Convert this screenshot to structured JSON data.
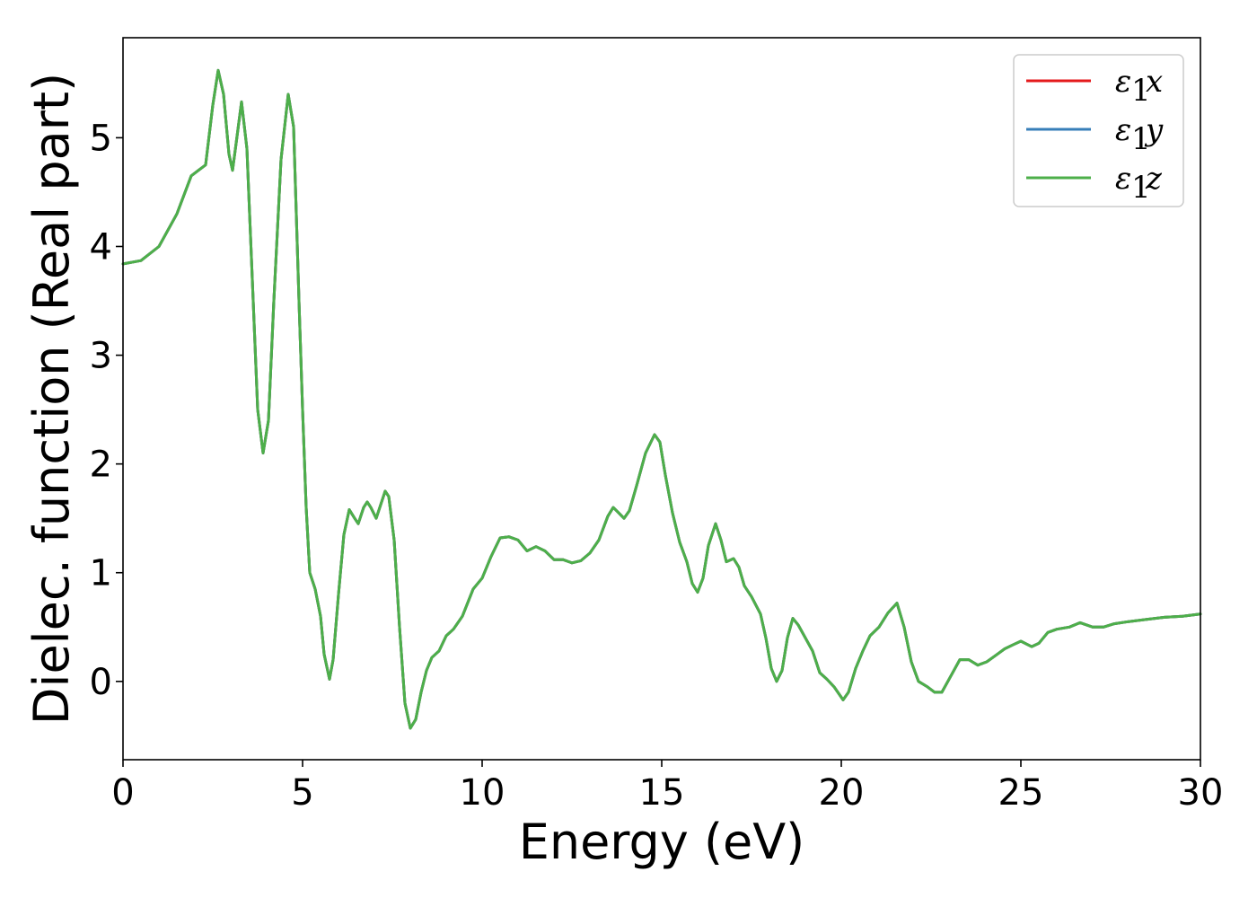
{
  "chart_data": {
    "type": "line",
    "title": "",
    "xlabel": "Energy (eV)",
    "ylabel": "Dielec. function (Real part)",
    "xlim": [
      0,
      30
    ],
    "ylim": [
      -0.72,
      5.92
    ],
    "xticks": [
      0,
      5,
      10,
      15,
      20,
      25,
      30
    ],
    "yticks": [
      0,
      1,
      2,
      3,
      4,
      5
    ],
    "grid": false,
    "legend_position": "top-right",
    "series": [
      {
        "name": "x",
        "color": "#e41a1c"
      },
      {
        "name": "y",
        "color": "#377eb8"
      },
      {
        "name": "z",
        "color": "#4daf4a"
      }
    ],
    "points": [
      [
        0,
        3.84
      ],
      [
        0.5,
        3.87
      ],
      [
        1.0,
        4.0
      ],
      [
        1.5,
        4.3
      ],
      [
        1.9,
        4.65
      ],
      [
        2.1,
        4.7
      ],
      [
        2.3,
        4.75
      ],
      [
        2.5,
        5.3
      ],
      [
        2.65,
        5.62
      ],
      [
        2.8,
        5.4
      ],
      [
        2.95,
        4.85
      ],
      [
        3.05,
        4.7
      ],
      [
        3.15,
        4.95
      ],
      [
        3.3,
        5.33
      ],
      [
        3.45,
        4.9
      ],
      [
        3.6,
        3.7
      ],
      [
        3.75,
        2.5
      ],
      [
        3.9,
        2.1
      ],
      [
        4.05,
        2.4
      ],
      [
        4.2,
        3.5
      ],
      [
        4.4,
        4.8
      ],
      [
        4.6,
        5.4
      ],
      [
        4.75,
        5.1
      ],
      [
        4.9,
        3.5
      ],
      [
        5.0,
        2.5
      ],
      [
        5.1,
        1.6
      ],
      [
        5.2,
        1.0
      ],
      [
        5.35,
        0.85
      ],
      [
        5.5,
        0.6
      ],
      [
        5.6,
        0.25
      ],
      [
        5.75,
        0.02
      ],
      [
        5.85,
        0.2
      ],
      [
        6.0,
        0.8
      ],
      [
        6.15,
        1.35
      ],
      [
        6.3,
        1.58
      ],
      [
        6.45,
        1.5
      ],
      [
        6.55,
        1.45
      ],
      [
        6.7,
        1.6
      ],
      [
        6.8,
        1.65
      ],
      [
        6.9,
        1.6
      ],
      [
        7.05,
        1.5
      ],
      [
        7.2,
        1.65
      ],
      [
        7.3,
        1.75
      ],
      [
        7.4,
        1.7
      ],
      [
        7.55,
        1.3
      ],
      [
        7.7,
        0.5
      ],
      [
        7.85,
        -0.2
      ],
      [
        8.0,
        -0.43
      ],
      [
        8.15,
        -0.35
      ],
      [
        8.3,
        -0.1
      ],
      [
        8.45,
        0.1
      ],
      [
        8.6,
        0.22
      ],
      [
        8.8,
        0.28
      ],
      [
        9.0,
        0.42
      ],
      [
        9.2,
        0.48
      ],
      [
        9.45,
        0.6
      ],
      [
        9.75,
        0.85
      ],
      [
        10.0,
        0.95
      ],
      [
        10.25,
        1.15
      ],
      [
        10.5,
        1.32
      ],
      [
        10.75,
        1.33
      ],
      [
        11.0,
        1.3
      ],
      [
        11.25,
        1.2
      ],
      [
        11.5,
        1.24
      ],
      [
        11.75,
        1.2
      ],
      [
        12.0,
        1.12
      ],
      [
        12.25,
        1.12
      ],
      [
        12.5,
        1.09
      ],
      [
        12.75,
        1.11
      ],
      [
        13.0,
        1.18
      ],
      [
        13.25,
        1.3
      ],
      [
        13.5,
        1.52
      ],
      [
        13.65,
        1.6
      ],
      [
        13.8,
        1.55
      ],
      [
        13.95,
        1.5
      ],
      [
        14.1,
        1.57
      ],
      [
        14.3,
        1.8
      ],
      [
        14.55,
        2.1
      ],
      [
        14.8,
        2.27
      ],
      [
        14.95,
        2.2
      ],
      [
        15.1,
        1.9
      ],
      [
        15.3,
        1.55
      ],
      [
        15.5,
        1.28
      ],
      [
        15.7,
        1.1
      ],
      [
        15.85,
        0.9
      ],
      [
        16.0,
        0.82
      ],
      [
        16.15,
        0.95
      ],
      [
        16.3,
        1.25
      ],
      [
        16.5,
        1.45
      ],
      [
        16.65,
        1.3
      ],
      [
        16.8,
        1.1
      ],
      [
        17.0,
        1.13
      ],
      [
        17.15,
        1.05
      ],
      [
        17.3,
        0.88
      ],
      [
        17.5,
        0.78
      ],
      [
        17.75,
        0.62
      ],
      [
        17.9,
        0.4
      ],
      [
        18.05,
        0.12
      ],
      [
        18.2,
        0.0
      ],
      [
        18.35,
        0.1
      ],
      [
        18.5,
        0.4
      ],
      [
        18.65,
        0.58
      ],
      [
        18.8,
        0.52
      ],
      [
        19.0,
        0.4
      ],
      [
        19.2,
        0.28
      ],
      [
        19.4,
        0.08
      ],
      [
        19.6,
        0.02
      ],
      [
        19.8,
        -0.05
      ],
      [
        20.05,
        -0.17
      ],
      [
        20.2,
        -0.1
      ],
      [
        20.4,
        0.12
      ],
      [
        20.6,
        0.28
      ],
      [
        20.8,
        0.42
      ],
      [
        21.05,
        0.5
      ],
      [
        21.3,
        0.63
      ],
      [
        21.55,
        0.72
      ],
      [
        21.75,
        0.5
      ],
      [
        21.95,
        0.18
      ],
      [
        22.15,
        0.0
      ],
      [
        22.4,
        -0.05
      ],
      [
        22.6,
        -0.1
      ],
      [
        22.8,
        -0.1
      ],
      [
        23.05,
        0.05
      ],
      [
        23.3,
        0.2
      ],
      [
        23.55,
        0.2
      ],
      [
        23.8,
        0.15
      ],
      [
        24.05,
        0.18
      ],
      [
        24.3,
        0.24
      ],
      [
        24.55,
        0.3
      ],
      [
        24.8,
        0.34
      ],
      [
        25.0,
        0.37
      ],
      [
        25.3,
        0.32
      ],
      [
        25.5,
        0.35
      ],
      [
        25.75,
        0.45
      ],
      [
        26.0,
        0.48
      ],
      [
        26.35,
        0.5
      ],
      [
        26.65,
        0.54
      ],
      [
        27.0,
        0.5
      ],
      [
        27.3,
        0.5
      ],
      [
        27.6,
        0.53
      ],
      [
        28.0,
        0.55
      ],
      [
        28.5,
        0.57
      ],
      [
        29.0,
        0.59
      ],
      [
        29.5,
        0.6
      ],
      [
        30.0,
        0.62
      ]
    ]
  }
}
